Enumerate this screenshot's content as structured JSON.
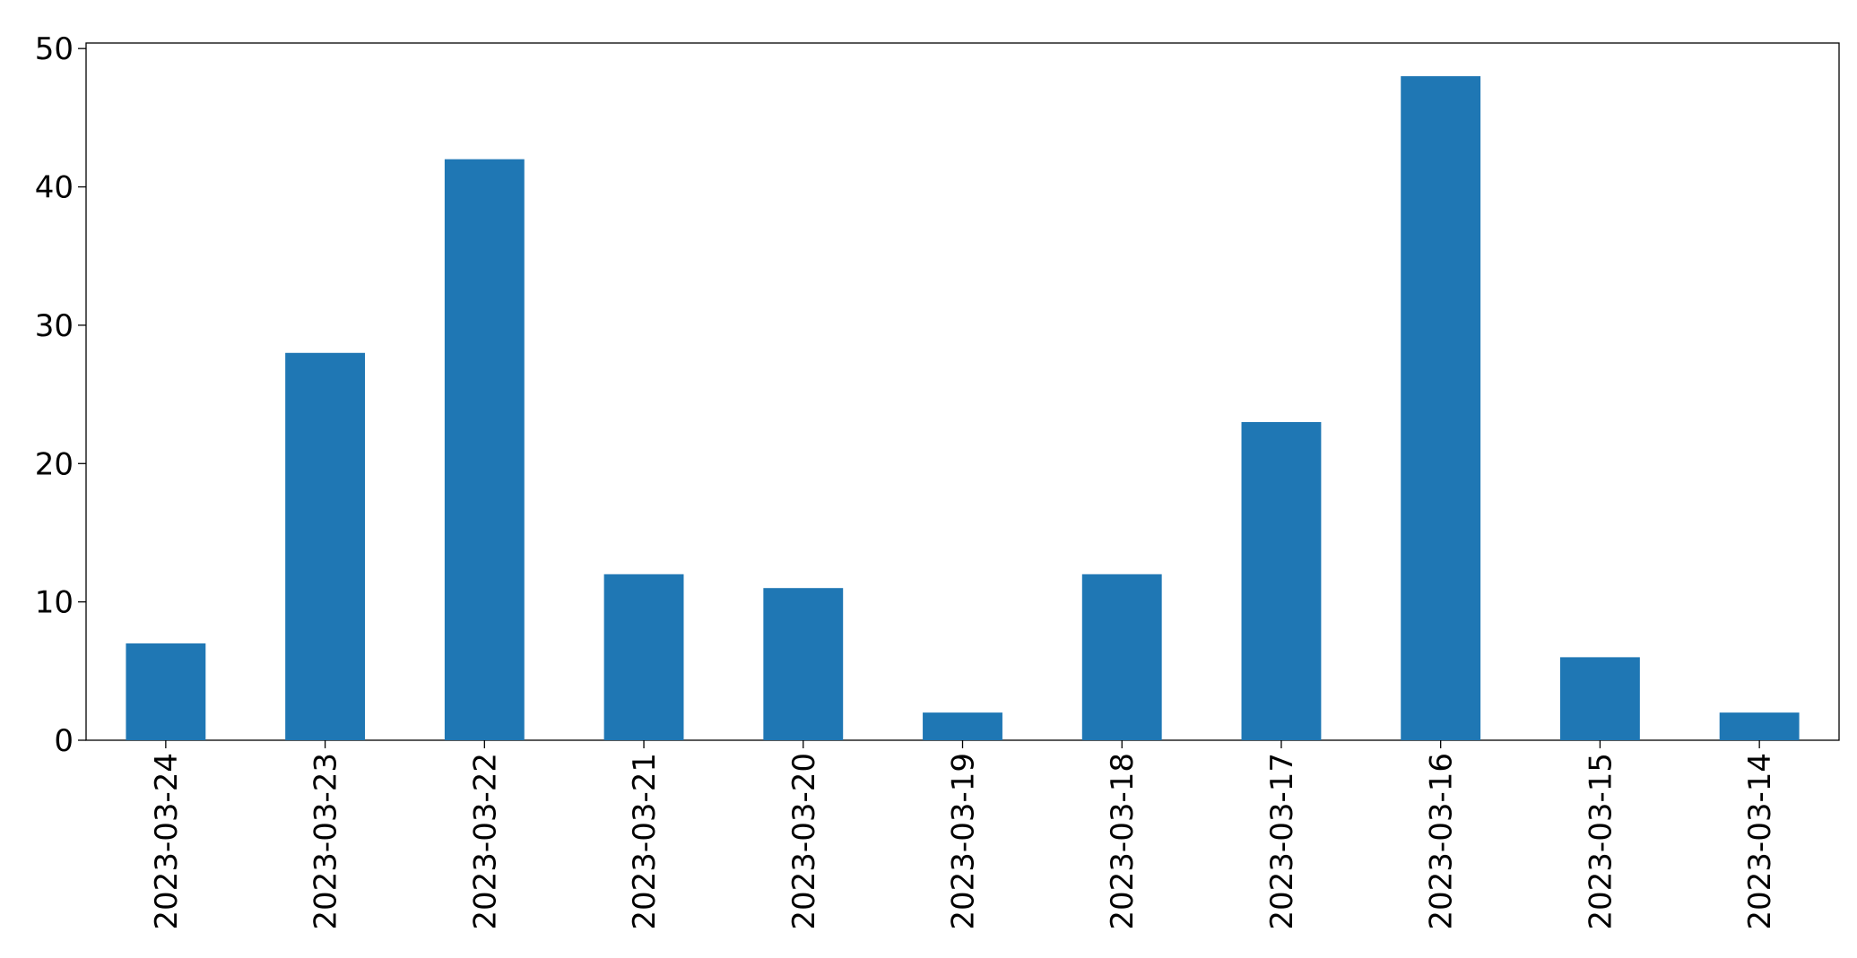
{
  "chart_data": {
    "type": "bar",
    "categories": [
      "2023-03-24",
      "2023-03-23",
      "2023-03-22",
      "2023-03-21",
      "2023-03-20",
      "2023-03-19",
      "2023-03-18",
      "2023-03-17",
      "2023-03-16",
      "2023-03-15",
      "2023-03-14"
    ],
    "values": [
      7,
      28,
      42,
      12,
      11,
      2,
      12,
      23,
      48,
      6,
      2
    ],
    "color": "#1f77b4",
    "ylim": [
      0,
      50.4
    ],
    "yticks": [
      0,
      10,
      20,
      30,
      40,
      50
    ],
    "grid": false
  }
}
